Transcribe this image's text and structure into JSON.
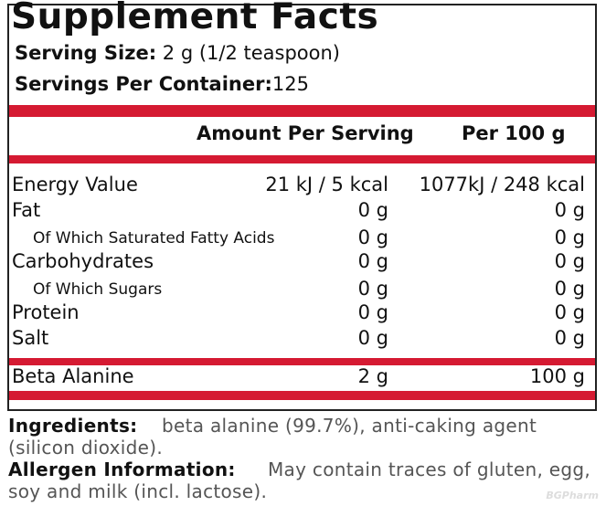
{
  "header": {
    "title": "Supplement Facts",
    "serving_size_label": "Serving Size:",
    "serving_size": "2 g (1/2 teaspoon)",
    "servings_label": "Servings Per Container:",
    "servings": "125"
  },
  "table": {
    "columns": [
      "Amount Per Serving",
      "Per 100 g"
    ],
    "rows": [
      [
        "Energy Value",
        "21 kJ / 5 kcal",
        "1077kJ / 248 kcal"
      ],
      [
        "Fat",
        "0 g",
        "0 g"
      ],
      [
        "Of Which Saturated Fatty Acids",
        "0 g",
        "0 g"
      ],
      [
        "Carbohydrates",
        "0 g",
        "0 g"
      ],
      [
        "Of Which Sugars",
        "0 g",
        "0 g"
      ],
      [
        "Protein",
        "0 g",
        "0 g"
      ],
      [
        "Salt",
        "0 g",
        "0 g"
      ],
      [
        "Beta Alanine",
        "2 g",
        "100 g"
      ]
    ]
  },
  "footer": {
    "ingredients_label": "Ingredients:",
    "ingredients": "beta alanine (99.7%), anti-caking agent (silicon dioxide).",
    "allergen_label": "Allergen Information:",
    "allergen": "May contain traces of gluten, egg, soy and milk (incl. lactose).",
    "watermark": "BGPharm"
  }
}
